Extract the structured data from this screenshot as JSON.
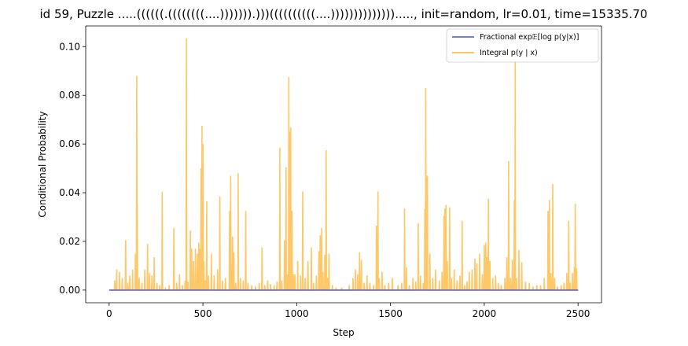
{
  "chart_data": {
    "type": "line",
    "title": "id 59, Puzzle .....((((((.((((((((....))))))).)))((((((((((....)))))))))))))).....,  init=random, lr=0.01, time=15335.70",
    "xlabel": "Step",
    "ylabel": "Conditional Probability",
    "xlim": [
      -125,
      2625
    ],
    "ylim": [
      -0.0052,
      0.1085
    ],
    "xticks": [
      0,
      500,
      1000,
      1500,
      2000,
      2500
    ],
    "xtick_labels": [
      "0",
      "500",
      "1000",
      "1500",
      "2000",
      "2500"
    ],
    "yticks": [
      0.0,
      0.02,
      0.04,
      0.06,
      0.08,
      0.1
    ],
    "ytick_labels": [
      "0.00",
      "0.02",
      "0.04",
      "0.06",
      "0.08",
      "0.10"
    ],
    "grid": false,
    "legend": {
      "placement": "top-right"
    },
    "series": [
      {
        "name": "Fractional exp𝔼[log p(y|x)]",
        "color": "#4a56c4",
        "constant": 0.0,
        "x_range": [
          0,
          2500
        ]
      },
      {
        "name": "Integral p(y | x)",
        "color": "#fdb434",
        "x_range": [
          0,
          2500
        ],
        "baseline": 0.0,
        "spikes": [
          [
            30,
            0.004
          ],
          [
            40,
            0.0085
          ],
          [
            55,
            0.0075
          ],
          [
            70,
            0.005
          ],
          [
            88,
            0.0205
          ],
          [
            100,
            0.003
          ],
          [
            110,
            0.006
          ],
          [
            125,
            0.0085
          ],
          [
            140,
            0.015
          ],
          [
            147,
            0.088
          ],
          [
            150,
            0.035
          ],
          [
            160,
            0.005
          ],
          [
            175,
            0.003
          ],
          [
            190,
            0.0085
          ],
          [
            205,
            0.019
          ],
          [
            215,
            0.007
          ],
          [
            228,
            0.006
          ],
          [
            240,
            0.0135
          ],
          [
            255,
            0.003
          ],
          [
            270,
            0.002
          ],
          [
            283,
            0.0405
          ],
          [
            300,
            0.001
          ],
          [
            320,
            0.002
          ],
          [
            345,
            0.0255
          ],
          [
            360,
            0.003
          ],
          [
            375,
            0.0065
          ],
          [
            390,
            0.002
          ],
          [
            405,
            0.004
          ],
          [
            412,
            0.1035
          ],
          [
            420,
            0.0035
          ],
          [
            433,
            0.0245
          ],
          [
            440,
            0.017
          ],
          [
            450,
            0.012
          ],
          [
            460,
            0.017
          ],
          [
            470,
            0.015
          ],
          [
            478,
            0.0195
          ],
          [
            485,
            0.017
          ],
          [
            490,
            0.05
          ],
          [
            495,
            0.0675
          ],
          [
            500,
            0.06
          ],
          [
            505,
            0.012
          ],
          [
            512,
            0.004
          ],
          [
            520,
            0.0365
          ],
          [
            530,
            0.006
          ],
          [
            545,
            0.015
          ],
          [
            560,
            0.006
          ],
          [
            578,
            0.0085
          ],
          [
            590,
            0.0385
          ],
          [
            605,
            0.004
          ],
          [
            620,
            0.005
          ],
          [
            642,
            0.0325
          ],
          [
            648,
            0.047
          ],
          [
            658,
            0.022
          ],
          [
            665,
            0.0155
          ],
          [
            675,
            0.003
          ],
          [
            688,
            0.048
          ],
          [
            700,
            0.005
          ],
          [
            715,
            0.004
          ],
          [
            728,
            0.0325
          ],
          [
            740,
            0.003
          ],
          [
            760,
            0.002
          ],
          [
            780,
            0.0015
          ],
          [
            800,
            0.003
          ],
          [
            815,
            0.0175
          ],
          [
            830,
            0.002
          ],
          [
            845,
            0.004
          ],
          [
            860,
            0.0025
          ],
          [
            880,
            0.002
          ],
          [
            895,
            0.0035
          ],
          [
            910,
            0.0585
          ],
          [
            920,
            0.004
          ],
          [
            935,
            0.0205
          ],
          [
            943,
            0.0505
          ],
          [
            950,
            0.0065
          ],
          [
            958,
            0.0875
          ],
          [
            963,
            0.065
          ],
          [
            968,
            0.0668
          ],
          [
            975,
            0.0325
          ],
          [
            982,
            0.0065
          ],
          [
            990,
            0.0065
          ],
          [
            1005,
            0.012
          ],
          [
            1020,
            0.006
          ],
          [
            1032,
            0.0405
          ],
          [
            1045,
            0.005
          ],
          [
            1060,
            0.012
          ],
          [
            1078,
            0.0175
          ],
          [
            1090,
            0.003
          ],
          [
            1105,
            0.006
          ],
          [
            1118,
            0.016
          ],
          [
            1125,
            0.0225
          ],
          [
            1133,
            0.0255
          ],
          [
            1140,
            0.0075
          ],
          [
            1150,
            0.0145
          ],
          [
            1157,
            0.0575
          ],
          [
            1165,
            0.005
          ],
          [
            1172,
            0.015
          ],
          [
            1190,
            0.002
          ],
          [
            1210,
            0.001
          ],
          [
            1240,
            0.001
          ],
          [
            1280,
            0.002
          ],
          [
            1300,
            0.005
          ],
          [
            1313,
            0.0085
          ],
          [
            1325,
            0.0065
          ],
          [
            1335,
            0.0155
          ],
          [
            1345,
            0.0125
          ],
          [
            1360,
            0.003
          ],
          [
            1375,
            0.006
          ],
          [
            1390,
            0.003
          ],
          [
            1410,
            0.002
          ],
          [
            1425,
            0.0265
          ],
          [
            1433,
            0.0405
          ],
          [
            1440,
            0.005
          ],
          [
            1455,
            0.0075
          ],
          [
            1470,
            0.002
          ],
          [
            1490,
            0.003
          ],
          [
            1510,
            0.005
          ],
          [
            1540,
            0.002
          ],
          [
            1560,
            0.003
          ],
          [
            1575,
            0.0335
          ],
          [
            1585,
            0.0095
          ],
          [
            1600,
            0.002
          ],
          [
            1620,
            0.005
          ],
          [
            1635,
            0.0035
          ],
          [
            1648,
            0.0275
          ],
          [
            1660,
            0.006
          ],
          [
            1675,
            0.003
          ],
          [
            1683,
            0.0335
          ],
          [
            1688,
            0.083
          ],
          [
            1693,
            0.0465
          ],
          [
            1697,
            0.047
          ],
          [
            1710,
            0.015
          ],
          [
            1725,
            0.005
          ],
          [
            1740,
            0.0085
          ],
          [
            1760,
            0.004
          ],
          [
            1775,
            0.0075
          ],
          [
            1785,
            0.0305
          ],
          [
            1790,
            0.0335
          ],
          [
            1796,
            0.035
          ],
          [
            1803,
            0.012
          ],
          [
            1815,
            0.034
          ],
          [
            1825,
            0.005
          ],
          [
            1840,
            0.0085
          ],
          [
            1855,
            0.004
          ],
          [
            1870,
            0.006
          ],
          [
            1882,
            0.0285
          ],
          [
            1895,
            0.002
          ],
          [
            1908,
            0.0035
          ],
          [
            1920,
            0.0075
          ],
          [
            1935,
            0.0085
          ],
          [
            1950,
            0.013
          ],
          [
            1960,
            0.011
          ],
          [
            1975,
            0.015
          ],
          [
            1990,
            0.0065
          ],
          [
            2000,
            0.0185
          ],
          [
            2008,
            0.0195
          ],
          [
            2015,
            0.0135
          ],
          [
            2022,
            0.0375
          ],
          [
            2030,
            0.012
          ],
          [
            2045,
            0.005
          ],
          [
            2060,
            0.006
          ],
          [
            2075,
            0.003
          ],
          [
            2090,
            0.002
          ],
          [
            2110,
            0.005
          ],
          [
            2120,
            0.0135
          ],
          [
            2130,
            0.053
          ],
          [
            2140,
            0.005
          ],
          [
            2150,
            0.0125
          ],
          [
            2160,
            0.037
          ],
          [
            2165,
            0.094
          ],
          [
            2172,
            0.005
          ],
          [
            2185,
            0.0165
          ],
          [
            2200,
            0.0115
          ],
          [
            2220,
            0.0035
          ],
          [
            2240,
            0.003
          ],
          [
            2260,
            0.0015
          ],
          [
            2280,
            0.002
          ],
          [
            2300,
            0.002
          ],
          [
            2320,
            0.005
          ],
          [
            2340,
            0.0325
          ],
          [
            2347,
            0.037
          ],
          [
            2355,
            0.007
          ],
          [
            2365,
            0.0435
          ],
          [
            2375,
            0.005
          ],
          [
            2390,
            0.0015
          ],
          [
            2410,
            0.002
          ],
          [
            2425,
            0.003
          ],
          [
            2440,
            0.007
          ],
          [
            2450,
            0.0285
          ],
          [
            2458,
            0.003
          ],
          [
            2470,
            0.007
          ],
          [
            2480,
            0.0095
          ],
          [
            2485,
            0.0355
          ],
          [
            2492,
            0.009
          ],
          [
            2500,
            0.0
          ]
        ]
      }
    ]
  }
}
